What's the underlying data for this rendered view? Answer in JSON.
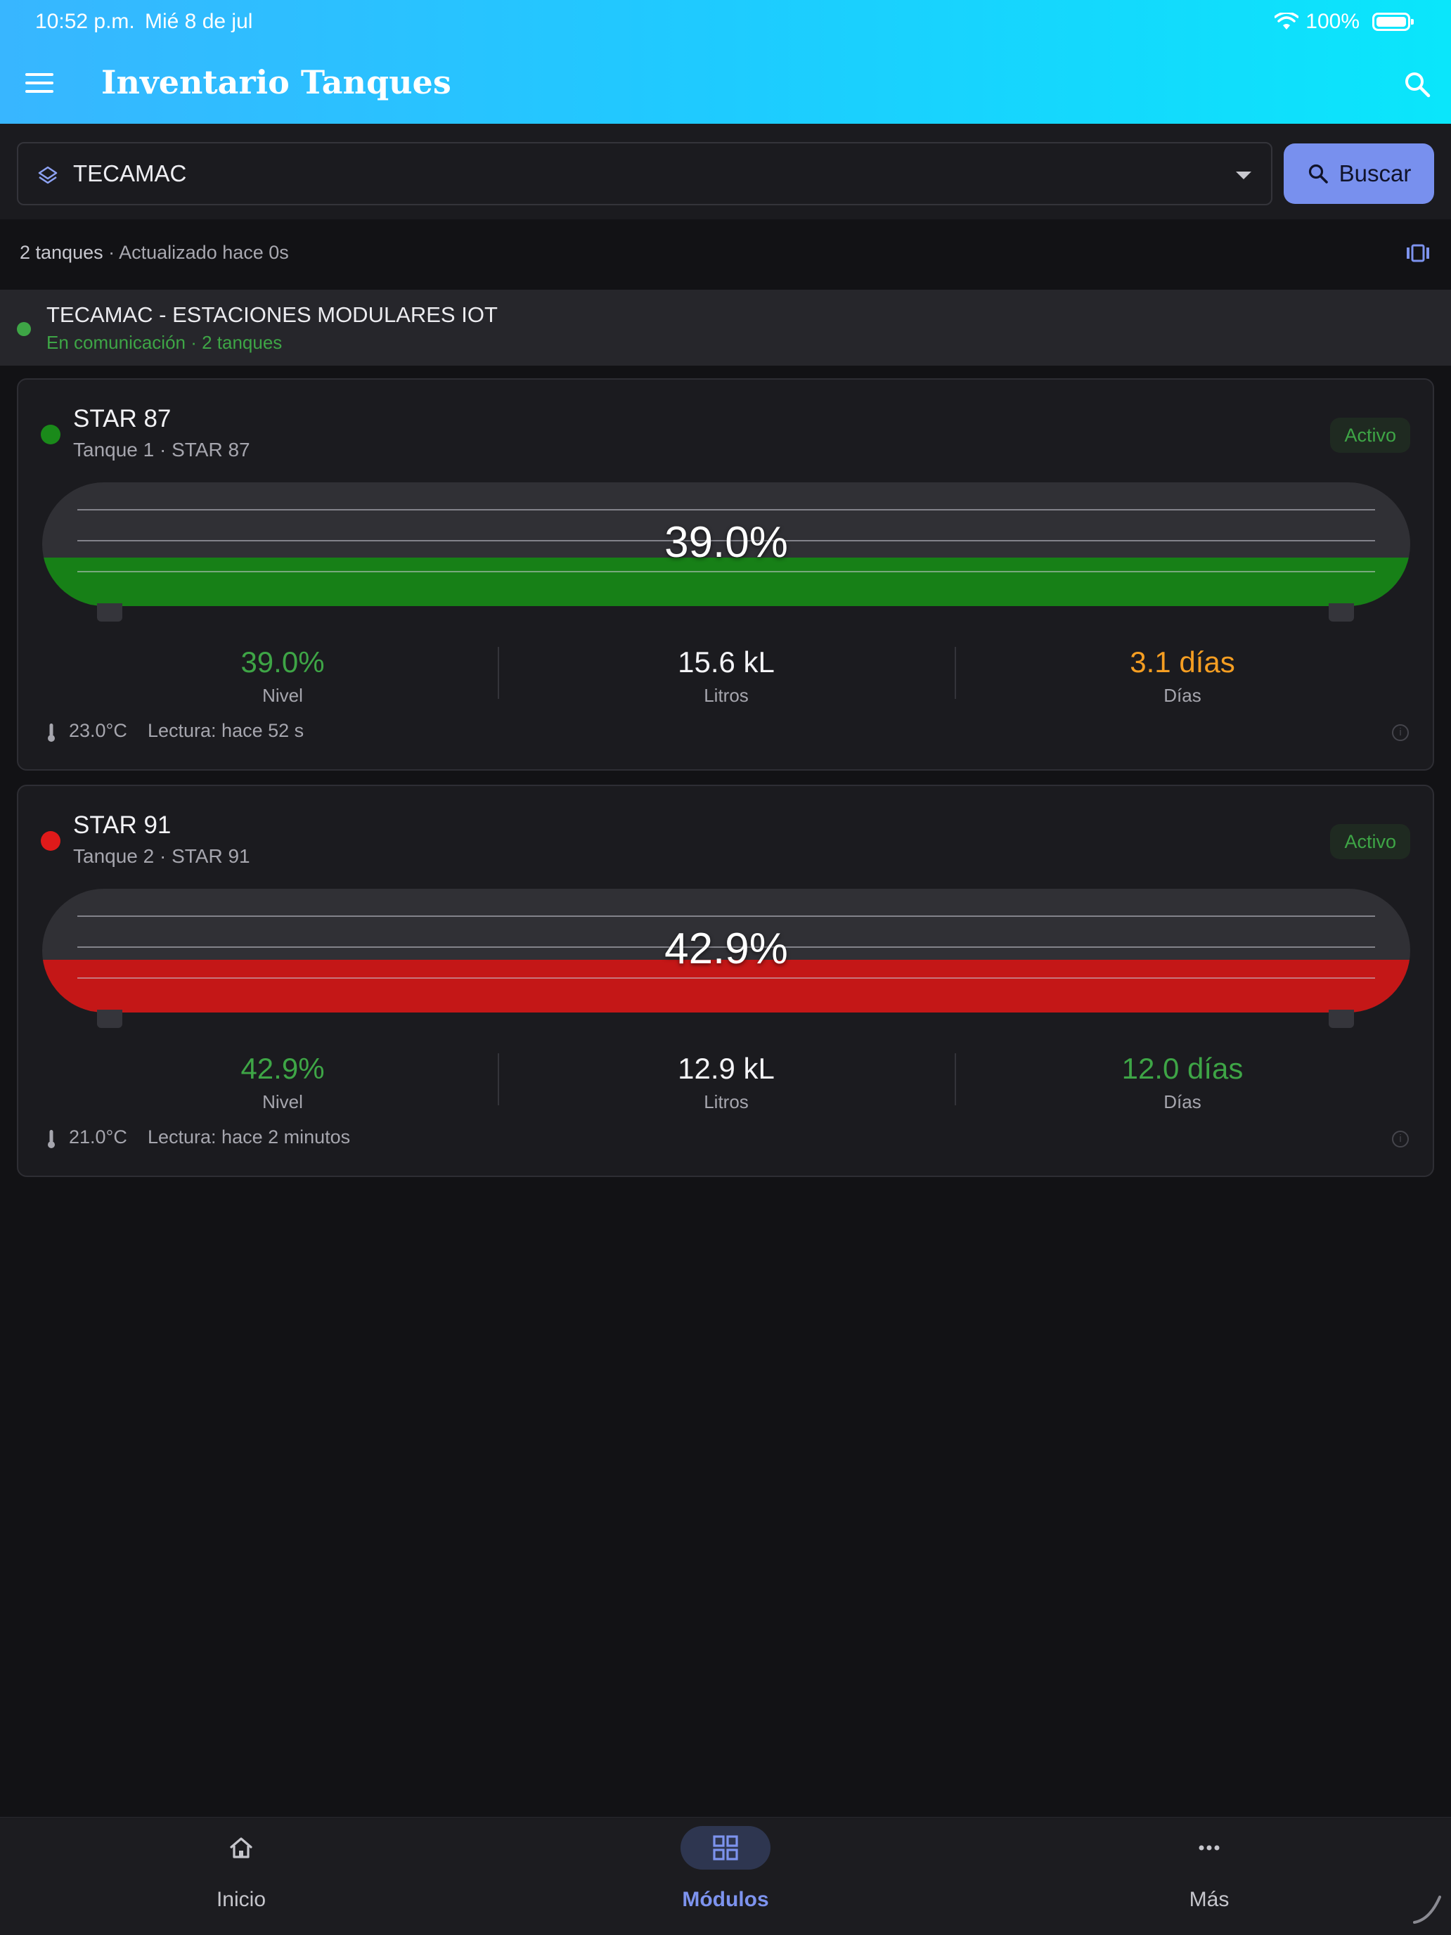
{
  "status_bar": {
    "time": "10:52 p.m.",
    "date": "Mié 8 de jul",
    "battery": "100%"
  },
  "header": {
    "title": "Inventario Tanques",
    "menu_icon": "menu-icon",
    "search_icon": "search-icon"
  },
  "filter": {
    "selected_location": "TECAMAC",
    "search_button_label": "Buscar"
  },
  "summary": {
    "count": "2 tanques",
    "updated": "· Actualizado hace 0s"
  },
  "group": {
    "title": "TECAMAC - ESTACIONES MODULARES IOT",
    "subtitle": "En comunicación · 2 tanques",
    "status_color": "#3ea546"
  },
  "tanks": [
    {
      "name": "STAR 87",
      "subtitle": "Tanque 1 · STAR 87",
      "status_badge": "Activo",
      "level_percent_label": "39.0%",
      "level_fraction": 0.39,
      "fill_color": "#178017",
      "dot_color": "#1a8a1a",
      "stats": {
        "nivel": "39.0%",
        "nivel_label": "Nivel",
        "litros": "15.6 kL",
        "litros_label": "Litros",
        "dias": "3.1 días",
        "dias_label": "Días",
        "dias_color": "#f59e22"
      },
      "temperature": "23.0°C",
      "reading": "Lectura: hace 52 s"
    },
    {
      "name": "STAR 91",
      "subtitle": "Tanque 2 · STAR 91",
      "status_badge": "Activo",
      "level_percent_label": "42.9%",
      "level_fraction": 0.429,
      "fill_color": "#c41717",
      "dot_color": "#e01a1a",
      "stats": {
        "nivel": "42.9%",
        "nivel_label": "Nivel",
        "litros": "12.9 kL",
        "litros_label": "Litros",
        "dias": "12.0 días",
        "dias_label": "Días",
        "dias_color": "#3ea546"
      },
      "temperature": "21.0°C",
      "reading": "Lectura: hace 2 minutos"
    }
  ],
  "bottom_nav": [
    {
      "label": "Inicio",
      "icon": "home-icon",
      "active": false
    },
    {
      "label": "Módulos",
      "icon": "grid-icon",
      "active": true
    },
    {
      "label": "Más",
      "icon": "more-icon",
      "active": false
    }
  ]
}
